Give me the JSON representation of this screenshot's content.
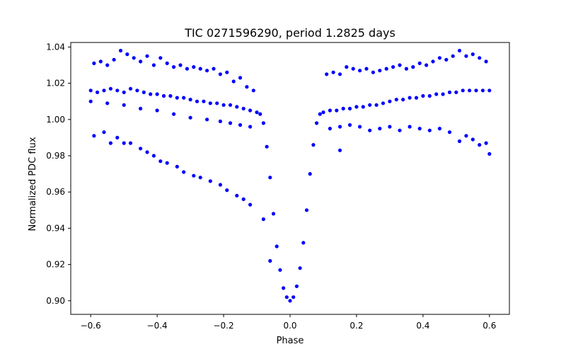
{
  "chart_data": {
    "type": "scatter",
    "title": "TIC 0271596290, period 1.2825 days",
    "xlabel": "Phase",
    "ylabel": "Normalized PDC flux",
    "xlim": [
      -0.66,
      0.66
    ],
    "ylim": [
      0.8925,
      1.0425
    ],
    "xticks": [
      -0.6,
      -0.4,
      -0.2,
      0.0,
      0.2,
      0.4,
      0.6
    ],
    "xtick_labels": [
      "−0.6",
      "−0.4",
      "−0.2",
      "0.0",
      "0.2",
      "0.4",
      "0.6"
    ],
    "yticks": [
      0.9,
      0.92,
      0.94,
      0.96,
      0.98,
      1.0,
      1.02,
      1.04
    ],
    "ytick_labels": [
      "0.90",
      "0.92",
      "0.94",
      "0.96",
      "0.98",
      "1.00",
      "1.02",
      "1.04"
    ],
    "grid": false,
    "marker_color": "#0000ff",
    "series": [
      {
        "points": [
          [
            -0.6,
            1.016
          ],
          [
            -0.58,
            1.015
          ],
          [
            -0.56,
            1.016
          ],
          [
            -0.54,
            1.017
          ],
          [
            -0.52,
            1.016
          ],
          [
            -0.5,
            1.015
          ],
          [
            -0.48,
            1.017
          ],
          [
            -0.46,
            1.016
          ],
          [
            -0.44,
            1.015
          ],
          [
            -0.42,
            1.014
          ],
          [
            -0.4,
            1.014
          ],
          [
            -0.38,
            1.013
          ],
          [
            -0.36,
            1.013
          ],
          [
            -0.34,
            1.012
          ],
          [
            -0.32,
            1.012
          ],
          [
            -0.3,
            1.011
          ],
          [
            -0.28,
            1.01
          ],
          [
            -0.26,
            1.01
          ],
          [
            -0.24,
            1.009
          ],
          [
            -0.22,
            1.009
          ],
          [
            -0.2,
            1.008
          ],
          [
            -0.18,
            1.008
          ],
          [
            -0.16,
            1.007
          ],
          [
            -0.14,
            1.006
          ],
          [
            -0.12,
            1.005
          ],
          [
            -0.1,
            1.004
          ],
          [
            -0.09,
            1.003
          ],
          [
            -0.08,
            0.998
          ],
          [
            -0.07,
            0.985
          ],
          [
            -0.06,
            0.968
          ],
          [
            -0.05,
            0.948
          ],
          [
            -0.04,
            0.93
          ],
          [
            -0.03,
            0.917
          ],
          [
            -0.02,
            0.907
          ],
          [
            -0.01,
            0.902
          ],
          [
            0.0,
            0.9
          ],
          [
            0.01,
            0.902
          ],
          [
            0.02,
            0.908
          ],
          [
            0.03,
            0.918
          ],
          [
            0.04,
            0.932
          ],
          [
            0.05,
            0.95
          ],
          [
            0.06,
            0.97
          ],
          [
            0.07,
            0.986
          ],
          [
            0.08,
            0.998
          ],
          [
            0.09,
            1.003
          ],
          [
            0.1,
            1.004
          ],
          [
            0.12,
            1.005
          ],
          [
            0.14,
            1.005
          ],
          [
            0.16,
            1.006
          ],
          [
            0.18,
            1.006
          ],
          [
            0.2,
            1.007
          ],
          [
            0.22,
            1.007
          ],
          [
            0.24,
            1.008
          ],
          [
            0.26,
            1.008
          ],
          [
            0.28,
            1.009
          ],
          [
            0.3,
            1.01
          ],
          [
            0.32,
            1.011
          ],
          [
            0.34,
            1.011
          ],
          [
            0.36,
            1.012
          ],
          [
            0.38,
            1.012
          ],
          [
            0.4,
            1.013
          ],
          [
            0.42,
            1.013
          ],
          [
            0.44,
            1.014
          ],
          [
            0.46,
            1.014
          ],
          [
            0.48,
            1.015
          ],
          [
            0.5,
            1.015
          ],
          [
            0.52,
            1.016
          ],
          [
            0.54,
            1.016
          ],
          [
            0.56,
            1.016
          ],
          [
            0.58,
            1.016
          ],
          [
            0.6,
            1.016
          ],
          [
            -0.59,
            1.031
          ],
          [
            -0.57,
            1.032
          ],
          [
            -0.55,
            1.03
          ],
          [
            -0.53,
            1.033
          ],
          [
            -0.51,
            1.038
          ],
          [
            -0.49,
            1.036
          ],
          [
            -0.47,
            1.034
          ],
          [
            -0.45,
            1.032
          ],
          [
            -0.43,
            1.035
          ],
          [
            -0.41,
            1.03
          ],
          [
            -0.39,
            1.034
          ],
          [
            -0.37,
            1.031
          ],
          [
            -0.35,
            1.029
          ],
          [
            -0.33,
            1.03
          ],
          [
            -0.31,
            1.028
          ],
          [
            -0.29,
            1.029
          ],
          [
            -0.27,
            1.028
          ],
          [
            -0.25,
            1.027
          ],
          [
            -0.23,
            1.028
          ],
          [
            -0.21,
            1.025
          ],
          [
            -0.19,
            1.026
          ],
          [
            -0.17,
            1.021
          ],
          [
            -0.15,
            1.023
          ],
          [
            -0.13,
            1.018
          ],
          [
            -0.11,
            1.016
          ],
          [
            0.11,
            1.025
          ],
          [
            0.13,
            1.026
          ],
          [
            0.15,
            1.025
          ],
          [
            0.17,
            1.029
          ],
          [
            0.19,
            1.028
          ],
          [
            0.21,
            1.027
          ],
          [
            0.23,
            1.028
          ],
          [
            0.25,
            1.026
          ],
          [
            0.27,
            1.027
          ],
          [
            0.29,
            1.028
          ],
          [
            0.31,
            1.029
          ],
          [
            0.33,
            1.03
          ],
          [
            0.35,
            1.028
          ],
          [
            0.37,
            1.029
          ],
          [
            0.39,
            1.031
          ],
          [
            0.41,
            1.03
          ],
          [
            0.43,
            1.032
          ],
          [
            0.45,
            1.034
          ],
          [
            0.47,
            1.033
          ],
          [
            0.49,
            1.035
          ],
          [
            0.51,
            1.038
          ],
          [
            0.53,
            1.035
          ],
          [
            0.55,
            1.036
          ],
          [
            0.57,
            1.034
          ],
          [
            0.59,
            1.032
          ],
          [
            -0.59,
            0.991
          ],
          [
            -0.56,
            0.993
          ],
          [
            -0.54,
            0.987
          ],
          [
            -0.52,
            0.99
          ],
          [
            -0.5,
            0.987
          ],
          [
            -0.48,
            0.987
          ],
          [
            -0.45,
            0.984
          ],
          [
            -0.43,
            0.982
          ],
          [
            -0.41,
            0.98
          ],
          [
            -0.39,
            0.977
          ],
          [
            -0.37,
            0.976
          ],
          [
            -0.34,
            0.974
          ],
          [
            -0.32,
            0.971
          ],
          [
            -0.29,
            0.969
          ],
          [
            -0.27,
            0.968
          ],
          [
            -0.24,
            0.966
          ],
          [
            -0.21,
            0.964
          ],
          [
            -0.19,
            0.961
          ],
          [
            -0.16,
            0.958
          ],
          [
            -0.14,
            0.956
          ],
          [
            -0.12,
            0.953
          ],
          [
            -0.08,
            0.945
          ],
          [
            -0.06,
            0.922
          ],
          [
            0.15,
            0.983
          ],
          [
            0.12,
            0.995
          ],
          [
            0.15,
            0.996
          ],
          [
            0.18,
            0.997
          ],
          [
            0.21,
            0.996
          ],
          [
            0.24,
            0.994
          ],
          [
            0.27,
            0.995
          ],
          [
            0.3,
            0.996
          ],
          [
            0.33,
            0.994
          ],
          [
            0.36,
            0.996
          ],
          [
            0.39,
            0.995
          ],
          [
            0.42,
            0.994
          ],
          [
            0.45,
            0.995
          ],
          [
            0.48,
            0.993
          ],
          [
            0.51,
            0.988
          ],
          [
            0.53,
            0.991
          ],
          [
            0.55,
            0.989
          ],
          [
            0.57,
            0.986
          ],
          [
            0.59,
            0.987
          ],
          [
            0.6,
            0.981
          ],
          [
            -0.12,
            0.996
          ],
          [
            -0.15,
            0.997
          ],
          [
            -0.18,
            0.998
          ],
          [
            -0.21,
            0.999
          ],
          [
            -0.25,
            1.0
          ],
          [
            -0.3,
            1.001
          ],
          [
            -0.35,
            1.003
          ],
          [
            -0.4,
            1.005
          ],
          [
            -0.45,
            1.006
          ],
          [
            -0.5,
            1.008
          ],
          [
            -0.55,
            1.009
          ],
          [
            -0.6,
            1.01
          ]
        ]
      }
    ]
  }
}
